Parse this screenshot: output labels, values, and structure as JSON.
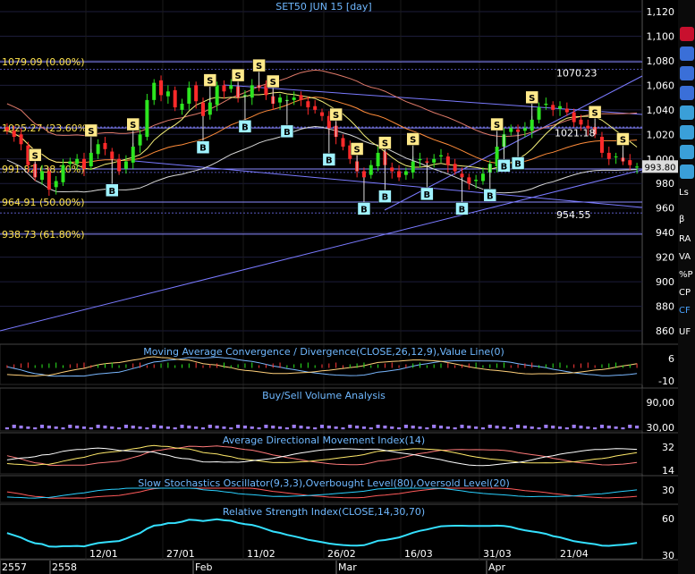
{
  "title": "SET50 JUN 15   [day]",
  "price_axis": [
    "1,120",
    "1,100",
    "1,080",
    "1,060",
    "1,040",
    "1,020",
    "1,000",
    "980",
    "960",
    "940",
    "920",
    "900",
    "880",
    "860"
  ],
  "price_axis_values": [
    1120,
    1100,
    1080,
    1060,
    1040,
    1020,
    1000,
    980,
    960,
    940,
    920,
    900,
    880,
    860
  ],
  "fib_levels": [
    {
      "label": "1079.09 (0.00%)",
      "value": 1079.09
    },
    {
      "label": "1025.27 (23.60%)",
      "value": 1025.27
    },
    {
      "label": "991.82 (38.20%)",
      "value": 991.82
    },
    {
      "label": "964.91 (50.00%)",
      "value": 964.91
    },
    {
      "label": "938.73 (61.80%)",
      "value": 938.73
    }
  ],
  "price_annotations": [
    {
      "text": "1070.23",
      "value": 1070.23
    },
    {
      "text": "1021.18",
      "value": 1021.18
    },
    {
      "text": "954.55",
      "value": 954.55
    }
  ],
  "last_price": "993.80",
  "panels": {
    "macd": {
      "title": "Moving Average Convergence / Divergence(CLOSE,26,12,9),Value Line(0)",
      "ticks": [
        "6",
        "-10"
      ]
    },
    "volume": {
      "title": "Buy/Sell Volume Analysis",
      "ticks": [
        "90,00",
        "30,00"
      ]
    },
    "adx": {
      "title": "Average Directional Movement Index(14)",
      "ticks": [
        "32",
        "14"
      ]
    },
    "stoch": {
      "title": "Slow Stochastics Oscillator(9,3,3),Overbought Level(80),Oversold Level(20)",
      "ticks": [
        "30"
      ]
    },
    "rsi": {
      "title": "Relative Strength Index(CLOSE,14,30,70)",
      "ticks": [
        "60",
        "30"
      ]
    }
  },
  "date_axis": {
    "top": [
      "12/01",
      "27/01",
      "11/02",
      "26/02",
      "16/03",
      "31/03",
      "21/04"
    ],
    "bottom": [
      "2557",
      "2558",
      "Feb",
      "Mar",
      "Apr"
    ]
  },
  "sidebar_labels": [
    "Ls",
    "β",
    "RA",
    "VA",
    "%P",
    "CP",
    "CF",
    "UF"
  ],
  "signals": {
    "buy": "B",
    "sell": "S"
  },
  "chart_data": {
    "type": "candlestick",
    "title": "SET50 JUN 15   [day]",
    "y_range": [
      852,
      1125
    ],
    "closes": [
      1023,
      1018,
      1012,
      995,
      985,
      990,
      975,
      982,
      995,
      998,
      1000,
      992,
      1005,
      1012,
      1008,
      1000,
      990,
      998,
      1010,
      1020,
      1048,
      1062,
      1052,
      1055,
      1042,
      1045,
      1058,
      1047,
      1035,
      1046,
      1060,
      1055,
      1060,
      1050,
      1052,
      1060,
      1058,
      1052,
      1045,
      1050,
      1048,
      1050,
      1048,
      1042,
      1040,
      1035,
      1025,
      1018,
      1010,
      1000,
      990,
      985,
      995,
      1005,
      995,
      990,
      985,
      990,
      998,
      1000,
      997,
      1000,
      1003,
      995,
      990,
      985,
      980,
      983,
      988,
      996,
      1010,
      1020,
      1025,
      1022,
      1025,
      1032,
      1042,
      1045,
      1040,
      1043,
      1038,
      1030,
      1028,
      1025,
      1020,
      1005,
      1000,
      1002,
      998,
      995,
      993.8
    ],
    "fib_levels": [
      1079.09,
      1025.27,
      991.82,
      964.91,
      938.73
    ],
    "signals": [
      {
        "type": "S",
        "i": 6
      },
      {
        "type": "S",
        "i": 17
      },
      {
        "type": "S",
        "i": 27
      },
      {
        "type": "S",
        "i": 43
      },
      {
        "type": "S",
        "i": 48
      },
      {
        "type": "S",
        "i": 53
      },
      {
        "type": "S",
        "i": 56
      },
      {
        "type": "S",
        "i": 69
      },
      {
        "type": "S",
        "i": 73
      },
      {
        "type": "S",
        "i": 80
      },
      {
        "type": "S",
        "i": 86
      },
      {
        "type": "S",
        "i": 103
      },
      {
        "type": "S",
        "i": 110
      },
      {
        "type": "S",
        "i": 123
      },
      {
        "type": "S",
        "i": 130
      },
      {
        "type": "B",
        "i": 22
      },
      {
        "type": "B",
        "i": 41
      },
      {
        "type": "B",
        "i": 50
      },
      {
        "type": "B",
        "i": 59
      },
      {
        "type": "B",
        "i": 68
      },
      {
        "type": "B",
        "i": 75
      },
      {
        "type": "B",
        "i": 80
      },
      {
        "type": "B",
        "i": 88
      },
      {
        "type": "B",
        "i": 95
      },
      {
        "type": "B",
        "i": 101
      },
      {
        "type": "B",
        "i": 104
      },
      {
        "type": "B",
        "i": 107
      }
    ],
    "x_labels": [
      "12/01",
      "27/01",
      "11/02",
      "26/02",
      "16/03",
      "31/03",
      "21/04"
    ]
  }
}
